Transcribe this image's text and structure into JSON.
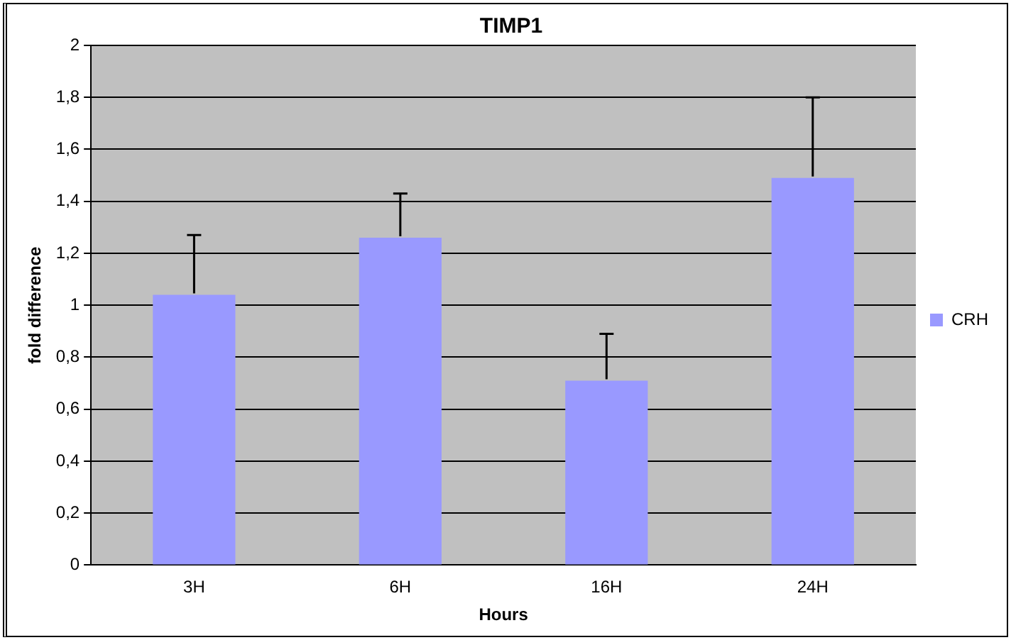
{
  "chart_data": {
    "type": "bar",
    "title": "TIMP1",
    "xlabel": "Hours",
    "ylabel": "fold difference",
    "categories": [
      "3H",
      "6H",
      "16H",
      "24H"
    ],
    "series": [
      {
        "name": "CRH",
        "color": "#9999ff",
        "values": [
          1.04,
          1.26,
          0.71,
          1.49
        ],
        "errors": [
          0.23,
          0.17,
          0.18,
          0.31
        ]
      }
    ],
    "ylim": [
      0,
      2
    ],
    "yticks": [
      {
        "value": 0,
        "label": "0"
      },
      {
        "value": 0.2,
        "label": "0,2"
      },
      {
        "value": 0.4,
        "label": "0,4"
      },
      {
        "value": 0.6,
        "label": "0,6"
      },
      {
        "value": 0.8,
        "label": "0,8"
      },
      {
        "value": 1,
        "label": "1"
      },
      {
        "value": 1.2,
        "label": "1,2"
      },
      {
        "value": 1.4,
        "label": "1,4"
      },
      {
        "value": 1.6,
        "label": "1,6"
      },
      {
        "value": 1.8,
        "label": "1,8"
      },
      {
        "value": 2,
        "label": "2"
      }
    ],
    "grid": "y",
    "legend": "right"
  }
}
